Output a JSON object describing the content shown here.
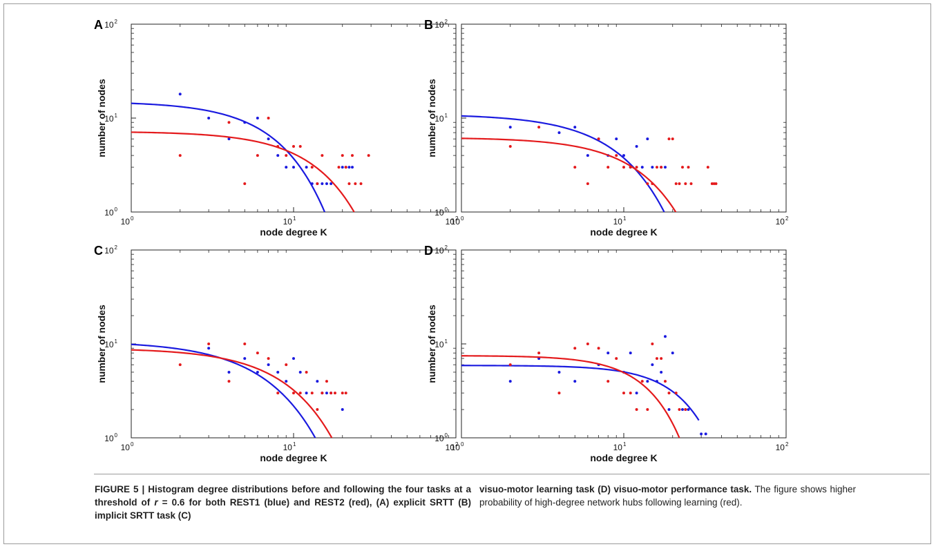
{
  "colors": {
    "rest1": "#1a1adf",
    "rest2": "#e41a1c",
    "axis": "#222222"
  },
  "chart_data": [
    {
      "type": "scatter",
      "panel": "A",
      "xlabel": "node degree K",
      "ylabel": "number of nodes",
      "xscale": "log",
      "yscale": "log",
      "xlim": [
        1,
        100
      ],
      "ylim": [
        1,
        100
      ],
      "xticks": [
        {
          "base": "10",
          "exp": "0"
        },
        {
          "base": "10",
          "exp": "1"
        },
        {
          "base": "10",
          "exp": "2"
        }
      ],
      "yticks": [
        {
          "base": "10",
          "exp": "0"
        },
        {
          "base": "10",
          "exp": "1"
        },
        {
          "base": "10",
          "exp": "2"
        }
      ],
      "series": [
        {
          "color": "rest1",
          "points": [
            [
              2,
              18
            ],
            [
              3,
              10
            ],
            [
              4,
              6
            ],
            [
              5,
              9
            ],
            [
              6,
              10
            ],
            [
              7,
              6
            ],
            [
              8,
              4
            ],
            [
              9,
              3
            ],
            [
              10,
              3
            ],
            [
              12,
              3
            ],
            [
              13,
              2
            ],
            [
              14,
              2
            ],
            [
              15,
              2
            ],
            [
              16,
              2
            ],
            [
              17,
              2
            ],
            [
              20,
              3
            ],
            [
              21,
              3
            ],
            [
              22,
              3
            ],
            [
              23,
              3
            ]
          ],
          "fit": {
            "a": 15,
            "k0": 8,
            "p": 1.5,
            "xmax": 21
          }
        },
        {
          "color": "rest2",
          "points": [
            [
              2,
              4
            ],
            [
              4,
              9
            ],
            [
              5,
              2
            ],
            [
              6,
              4
            ],
            [
              7,
              10
            ],
            [
              8,
              5
            ],
            [
              9,
              4
            ],
            [
              10,
              5
            ],
            [
              11,
              5
            ],
            [
              13,
              3
            ],
            [
              14,
              2
            ],
            [
              15,
              4
            ],
            [
              19,
              3
            ],
            [
              20,
              4
            ],
            [
              21,
              3
            ],
            [
              22,
              2
            ],
            [
              23,
              4
            ],
            [
              24,
              2
            ],
            [
              26,
              2
            ],
            [
              29,
              4
            ]
          ],
          "fit": {
            "a": 7.2,
            "k0": 15,
            "p": 1.5,
            "xmax": 30
          }
        }
      ]
    },
    {
      "type": "scatter",
      "panel": "B",
      "xlabel": "node degree K",
      "ylabel": "number of nodes",
      "xscale": "log",
      "yscale": "log",
      "xlim": [
        1,
        100
      ],
      "ylim": [
        1,
        100
      ],
      "xticks": [
        {
          "base": "10",
          "exp": "0"
        },
        {
          "base": "10",
          "exp": "1"
        },
        {
          "base": "10",
          "exp": "2"
        }
      ],
      "yticks": [
        {
          "base": "10",
          "exp": "0"
        },
        {
          "base": "10",
          "exp": "1"
        },
        {
          "base": "10",
          "exp": "2"
        }
      ],
      "series": [
        {
          "color": "rest1",
          "points": [
            [
              2,
              8
            ],
            [
              4,
              7
            ],
            [
              5,
              8
            ],
            [
              6,
              4
            ],
            [
              7,
              6
            ],
            [
              8,
              4
            ],
            [
              9,
              6
            ],
            [
              10,
              4
            ],
            [
              11,
              3
            ],
            [
              12,
              5
            ],
            [
              13,
              3
            ],
            [
              14,
              6
            ],
            [
              15,
              3
            ],
            [
              17,
              3
            ],
            [
              18,
              3
            ]
          ],
          "fit": {
            "a": 11,
            "k0": 9.5,
            "p": 1.4,
            "xmax": 24
          }
        },
        {
          "color": "rest2",
          "points": [
            [
              2,
              5
            ],
            [
              3,
              8
            ],
            [
              5,
              3
            ],
            [
              6,
              2
            ],
            [
              7,
              6
            ],
            [
              8,
              3
            ],
            [
              9,
              4
            ],
            [
              10,
              3
            ],
            [
              11,
              3
            ],
            [
              12,
              3
            ],
            [
              14,
              2
            ],
            [
              15,
              2
            ],
            [
              16,
              3
            ],
            [
              17,
              3
            ],
            [
              19,
              6
            ],
            [
              20,
              6
            ],
            [
              21,
              2
            ],
            [
              22,
              2
            ],
            [
              23,
              3
            ],
            [
              24,
              2
            ],
            [
              25,
              3
            ],
            [
              26,
              2
            ],
            [
              33,
              3
            ],
            [
              35,
              2
            ],
            [
              36,
              2
            ],
            [
              37,
              2
            ]
          ],
          "fit": {
            "a": 6.2,
            "k0": 14,
            "p": 1.5,
            "xmax": 30
          }
        }
      ]
    },
    {
      "type": "scatter",
      "panel": "C",
      "xlabel": "node degree K",
      "ylabel": "number of nodes",
      "xscale": "log",
      "yscale": "log",
      "xlim": [
        1,
        100
      ],
      "ylim": [
        1,
        100
      ],
      "xticks": [
        {
          "base": "10",
          "exp": "0"
        },
        {
          "base": "10",
          "exp": "1"
        },
        {
          "base": "10",
          "exp": "2"
        }
      ],
      "yticks": [
        {
          "base": "10",
          "exp": "0"
        },
        {
          "base": "10",
          "exp": "1"
        },
        {
          "base": "10",
          "exp": "2"
        }
      ],
      "series": [
        {
          "color": "rest1",
          "points": [
            [
              3,
              9
            ],
            [
              4,
              5
            ],
            [
              5,
              7
            ],
            [
              6,
              5
            ],
            [
              7,
              6
            ],
            [
              8,
              5
            ],
            [
              9,
              4
            ],
            [
              10,
              7
            ],
            [
              11,
              5
            ],
            [
              12,
              3
            ],
            [
              14,
              4
            ],
            [
              15,
              3
            ],
            [
              16,
              3
            ],
            [
              17,
              3
            ],
            [
              20,
              2
            ]
          ],
          "fit": {
            "a": 10.7,
            "k0": 7,
            "p": 1.3,
            "xmax": 20
          }
        },
        {
          "color": "rest2",
          "points": [
            [
              2,
              6
            ],
            [
              3,
              10
            ],
            [
              4,
              4
            ],
            [
              5,
              10
            ],
            [
              6,
              8
            ],
            [
              7,
              7
            ],
            [
              8,
              3
            ],
            [
              9,
              6
            ],
            [
              10,
              3
            ],
            [
              11,
              3
            ],
            [
              12,
              5
            ],
            [
              13,
              3
            ],
            [
              14,
              2
            ],
            [
              15,
              3
            ],
            [
              16,
              4
            ],
            [
              17,
              3
            ],
            [
              18,
              3
            ],
            [
              20,
              3
            ],
            [
              21,
              3
            ]
          ],
          "fit": {
            "a": 9.0,
            "k0": 9.8,
            "p": 1.4,
            "xmax": 22
          }
        }
      ]
    },
    {
      "type": "scatter",
      "panel": "D",
      "xlabel": "node degree K",
      "ylabel": "number of nodes",
      "xscale": "log",
      "yscale": "log",
      "xlim": [
        1,
        100
      ],
      "ylim": [
        1,
        100
      ],
      "xticks": [
        {
          "base": "10",
          "exp": "0"
        },
        {
          "base": "10",
          "exp": "1"
        },
        {
          "base": "10",
          "exp": "2"
        }
      ],
      "yticks": [
        {
          "base": "10",
          "exp": "0"
        },
        {
          "base": "10",
          "exp": "1"
        },
        {
          "base": "10",
          "exp": "2"
        }
      ],
      "series": [
        {
          "color": "rest1",
          "points": [
            [
              2,
              4
            ],
            [
              3,
              7
            ],
            [
              4,
              5
            ],
            [
              5,
              4
            ],
            [
              7,
              6
            ],
            [
              8,
              8
            ],
            [
              10,
              5
            ],
            [
              11,
              8
            ],
            [
              12,
              3
            ],
            [
              14,
              4
            ],
            [
              15,
              6
            ],
            [
              16,
              4
            ],
            [
              17,
              5
            ],
            [
              18,
              12
            ],
            [
              19,
              2
            ],
            [
              20,
              8
            ],
            [
              23,
              2
            ],
            [
              24,
              2
            ],
            [
              25,
              2
            ],
            [
              30,
              1.1
            ],
            [
              32,
              1.1
            ]
          ],
          "fit": {
            "a": 5.9,
            "k0": 25,
            "p": 2.0,
            "xmax": 29
          }
        },
        {
          "color": "rest2",
          "points": [
            [
              2,
              6
            ],
            [
              3,
              8
            ],
            [
              4,
              3
            ],
            [
              5,
              9
            ],
            [
              6,
              10
            ],
            [
              7,
              9
            ],
            [
              8,
              4
            ],
            [
              9,
              7
            ],
            [
              10,
              3
            ],
            [
              11,
              3
            ],
            [
              12,
              2
            ],
            [
              13,
              4
            ],
            [
              14,
              2
            ],
            [
              15,
              10
            ],
            [
              16,
              7
            ],
            [
              17,
              7
            ],
            [
              18,
              4
            ],
            [
              19,
              3
            ],
            [
              21,
              3
            ],
            [
              22,
              2
            ],
            [
              24,
              2
            ]
          ],
          "fit": {
            "a": 7.5,
            "k0": 15.5,
            "p": 2.0,
            "xmax": 24
          }
        }
      ]
    }
  ],
  "caption": {
    "label": "FIGURE 5 | ",
    "bold_left": "Histogram degree distributions before and following the four tasks at a threshold of ",
    "r_symbol": "r",
    "r_value": " = 0.6 for both REST1 (blue) and REST2 (red), (A) explicit SRTT (B) implicit SRTT task (C)",
    "bold_right": "visuo-motor learning task (D) visuo-motor performance task.",
    "plain_right": " The figure shows higher probability of high-degree network hubs following learning (red)."
  }
}
